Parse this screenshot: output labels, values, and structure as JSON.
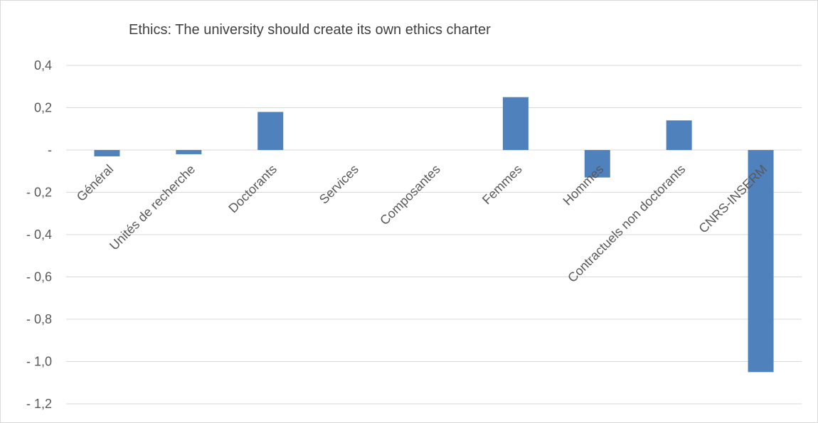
{
  "chart_data": {
    "type": "bar",
    "title": "Ethics: The university should create its own ethics charter",
    "xlabel": "",
    "ylabel": "",
    "ylim": [
      -1.2,
      0.4
    ],
    "grid": true,
    "legend": "none",
    "bar_color": "#4f81bd",
    "grid_color": "#d9d9d9",
    "y_ticks": [
      {
        "value": 0.4,
        "label": "0,4"
      },
      {
        "value": 0.2,
        "label": "0,2"
      },
      {
        "value": 0.0,
        "label": "-"
      },
      {
        "value": -0.2,
        "label": "- 0,2"
      },
      {
        "value": -0.4,
        "label": "- 0,4"
      },
      {
        "value": -0.6,
        "label": "- 0,6"
      },
      {
        "value": -0.8,
        "label": "- 0,8"
      },
      {
        "value": -1.0,
        "label": "- 1,0"
      },
      {
        "value": -1.2,
        "label": "- 1,2"
      }
    ],
    "categories": [
      "Général",
      "Unités de recherche",
      "Doctorants",
      "Services",
      "Composantes",
      "Femmes",
      "Hommes",
      "Contractuels non doctorants",
      "CNRS-INSERM"
    ],
    "values": [
      -0.03,
      -0.02,
      0.18,
      0.0,
      0.0,
      0.25,
      -0.13,
      0.14,
      -1.05
    ]
  }
}
